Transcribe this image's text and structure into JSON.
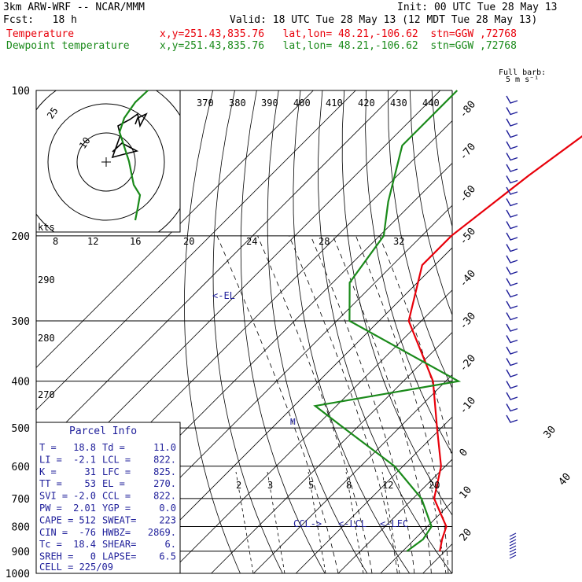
{
  "header": {
    "model": "3km ARW-WRF -- NCAR/MMM",
    "init": "Init: 00 UTC Tue 28 May 13",
    "fcst": "Fcst:   18 h",
    "valid": "Valid: 18 UTC Tue 28 May 13 (12 MDT Tue 28 May 13)",
    "temp_label": "Temperature",
    "temp_info": "x,y=251.43,835.76   lat,lon= 48.21,-106.62  stn=GGW ,72768",
    "dew_label": "Dewpoint temperature",
    "dew_info": "x,y=251.43,835.76   lat,lon= 48.21,-106.62  stn=GGW ,72768"
  },
  "colors": {
    "temperature": "#e8000a",
    "dewpoint": "#1a8a1a",
    "wind": "#1e1e9a",
    "grid": "#000000"
  },
  "chart_data": {
    "type": "line",
    "title": "",
    "ylabel": "",
    "xlabel": "",
    "pressure_levels": [
      100,
      200,
      300,
      400,
      500,
      600,
      700,
      800,
      900,
      1000
    ],
    "pressure_labels": [
      "100",
      "200",
      "300",
      "400",
      "500",
      "600",
      "700",
      "800",
      "900",
      "1000"
    ],
    "isotherm_labels": [
      "-80",
      "-70",
      "-60",
      "-50",
      "-40",
      "-30",
      "-20",
      "-10",
      "0",
      "10",
      "20",
      "30",
      "40"
    ],
    "theta_labels": [
      "370",
      "380",
      "390",
      "400",
      "410",
      "420",
      "430",
      "440"
    ],
    "theta_side_labels": [
      "290",
      "280",
      "270"
    ],
    "mixing_ratio_labels": [
      "2",
      "3",
      "5",
      "8",
      "12",
      "20"
    ],
    "hodograph": {
      "unit_label": "kts",
      "ring_labels": [
        "25",
        "10"
      ],
      "speed_labels": [
        "8",
        "12",
        "16",
        "20",
        "24",
        "28",
        "32"
      ]
    },
    "annotations": {
      "el": "<-EL",
      "ccl": "CCL->",
      "lcl": "<-LCL",
      "lfc": "<-LFC",
      "m": "M"
    },
    "full_barb": {
      "line1": "Full barb:",
      "line2": "5 m s⁻¹"
    },
    "series": [
      {
        "name": "Temperature",
        "color": "#e8000a",
        "points": [
          [
            100,
            -42
          ],
          [
            120,
            -45
          ],
          [
            150,
            -49
          ],
          [
            200,
            -53
          ],
          [
            230,
            -53
          ],
          [
            300,
            -43
          ],
          [
            400,
            -23
          ],
          [
            500,
            -11
          ],
          [
            600,
            -1
          ],
          [
            700,
            5
          ],
          [
            800,
            14.5
          ],
          [
            850,
            16.5
          ],
          [
            900,
            18.8
          ]
        ]
      },
      {
        "name": "Dewpoint temperature",
        "color": "#1a8a1a",
        "points": [
          [
            100,
            -86
          ],
          [
            130,
            -86
          ],
          [
            170,
            -76
          ],
          [
            200,
            -69
          ],
          [
            250,
            -66
          ],
          [
            300,
            -57
          ],
          [
            400,
            -17
          ],
          [
            450,
            -45
          ],
          [
            500,
            -33
          ],
          [
            600,
            -12
          ],
          [
            700,
            2
          ],
          [
            800,
            11
          ],
          [
            850,
            12
          ],
          [
            900,
            11.0
          ]
        ]
      }
    ]
  },
  "parcel_info": {
    "title": "Parcel Info",
    "rows": [
      [
        "T  =",
        "18.8",
        "Td =",
        "11.0"
      ],
      [
        "LI =",
        "-2.1",
        "LCL =",
        "822."
      ],
      [
        "K  =",
        "31",
        "LFC =",
        "825."
      ],
      [
        "TT =",
        "53",
        "EL  =",
        "270."
      ],
      [
        "SVI =",
        "-2.0",
        "CCL =",
        "822."
      ],
      [
        "PW =",
        "2.01",
        "YGP =",
        "0.0"
      ],
      [
        "CAPE =",
        "512",
        "SWEAT=",
        "223"
      ],
      [
        "CIN =",
        "-76",
        "HWBZ=",
        "2869."
      ],
      [
        "Tc =",
        "18.4",
        "SHEAR=",
        "6."
      ],
      [
        "SREH =",
        "0",
        "LAPSE=",
        "6.5"
      ]
    ],
    "cell": "CELL = 225/09"
  }
}
